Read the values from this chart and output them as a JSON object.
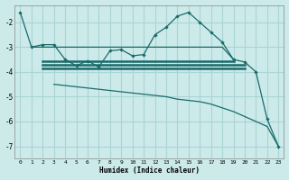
{
  "xlabel": "Humidex (Indice chaleur)",
  "bg_color": "#cceaea",
  "grid_color": "#aad4d4",
  "line_color": "#1a6b6b",
  "xlim": [
    -0.5,
    23.5
  ],
  "ylim": [
    -7.5,
    -1.3
  ],
  "yticks": [
    -7,
    -6,
    -5,
    -4,
    -3,
    -2
  ],
  "xticks": [
    0,
    1,
    2,
    3,
    4,
    5,
    6,
    7,
    8,
    9,
    10,
    11,
    12,
    13,
    14,
    15,
    16,
    17,
    18,
    19,
    20,
    21,
    22,
    23
  ],
  "wavy_x": [
    0,
    1,
    2,
    3,
    4,
    5,
    6,
    7,
    8,
    9,
    10,
    11,
    12,
    13,
    14,
    15,
    16,
    17,
    18,
    19,
    20,
    21,
    22,
    23
  ],
  "wavy_y": [
    -1.6,
    -3.0,
    -2.9,
    -2.9,
    -3.5,
    -3.75,
    -3.55,
    -3.8,
    -3.15,
    -3.1,
    -3.35,
    -3.3,
    -2.5,
    -2.2,
    -1.75,
    -1.6,
    -2.0,
    -2.4,
    -2.8,
    -3.5,
    -3.6,
    -4.0,
    -5.9,
    -7.0
  ],
  "flat_x": [
    1,
    2,
    3,
    4,
    5,
    6,
    7,
    8,
    9,
    10,
    11,
    12,
    13,
    14,
    15,
    16,
    17,
    18,
    19
  ],
  "flat_y": [
    -3.0,
    -3.0,
    -3.0,
    -3.0,
    -3.0,
    -3.0,
    -3.0,
    -3.0,
    -3.0,
    -3.0,
    -3.0,
    -3.0,
    -3.0,
    -3.0,
    -3.0,
    -3.0,
    -3.0,
    -3.0,
    -3.5
  ],
  "hline1_x": [
    2,
    19
  ],
  "hline1_y": [
    -3.55,
    -3.55
  ],
  "hline2_x": [
    2,
    20
  ],
  "hline2_y": [
    -3.7,
    -3.7
  ],
  "hline3_x": [
    2,
    20
  ],
  "hline3_y": [
    -3.85,
    -3.85
  ],
  "diag_x": [
    3,
    4,
    5,
    6,
    7,
    8,
    9,
    10,
    11,
    12,
    13,
    14,
    15,
    16,
    17,
    18,
    19,
    20,
    21,
    22,
    23
  ],
  "diag_y": [
    -4.5,
    -4.55,
    -4.6,
    -4.65,
    -4.7,
    -4.75,
    -4.8,
    -4.85,
    -4.9,
    -4.95,
    -5.0,
    -5.1,
    -5.15,
    -5.2,
    -5.3,
    -5.45,
    -5.6,
    -5.8,
    -6.0,
    -6.2,
    -7.0
  ]
}
